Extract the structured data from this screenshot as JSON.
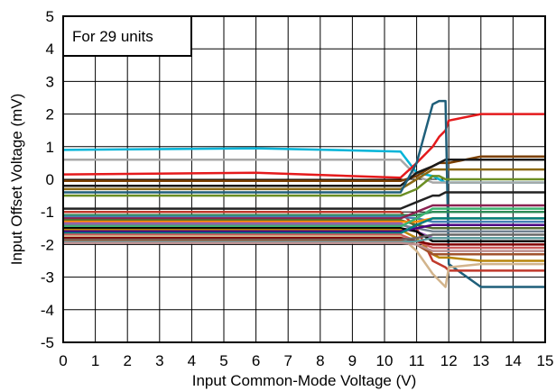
{
  "chart_data": {
    "type": "line",
    "annotation": "For 29 units",
    "xlabel": "Input Common-Mode Voltage (V)",
    "ylabel": "Input Offset Voltage (mV)",
    "xlim": [
      0,
      15
    ],
    "ylim": [
      -5,
      5
    ],
    "xticks": [
      "0",
      "1",
      "2",
      "3",
      "4",
      "5",
      "6",
      "7",
      "8",
      "9",
      "10",
      "11",
      "12",
      "13",
      "14",
      "15"
    ],
    "yticks": [
      "5",
      "4",
      "3",
      "2",
      "1",
      "0",
      "-1",
      "-2",
      "-3",
      "-4",
      "-5"
    ],
    "grid": true,
    "x": [
      0,
      6,
      10.5,
      11,
      11.5,
      11.7,
      11.9,
      12,
      13,
      15
    ],
    "series": [
      {
        "color": "#00b4d8",
        "values": [
          0.9,
          0.95,
          0.85,
          0.2,
          0.1,
          0.0,
          -0.1,
          -0.1,
          -0.1,
          -0.1
        ]
      },
      {
        "color": "#a8a8a8",
        "values": [
          0.6,
          0.6,
          0.6,
          0.1,
          -0.1,
          -0.1,
          -0.1,
          -0.1,
          -0.1,
          -0.1
        ]
      },
      {
        "color": "#e41a1c",
        "values": [
          0.15,
          0.2,
          0.05,
          0.5,
          1.0,
          1.3,
          1.5,
          1.8,
          2.0,
          2.0
        ]
      },
      {
        "color": "#7b3f00",
        "values": [
          -0.05,
          -0.05,
          -0.05,
          0.1,
          0.4,
          0.5,
          0.5,
          0.5,
          0.7,
          0.7
        ]
      },
      {
        "color": "#1a1a1a",
        "values": [
          -0.2,
          -0.2,
          -0.2,
          0.2,
          0.4,
          0.5,
          0.6,
          0.6,
          0.6,
          0.6
        ]
      },
      {
        "color": "#8b6914",
        "values": [
          -0.3,
          -0.3,
          -0.3,
          0.0,
          0.3,
          0.3,
          0.3,
          0.3,
          0.3,
          0.3
        ]
      },
      {
        "color": "#1f5f7a",
        "values": [
          -0.4,
          -0.4,
          -0.4,
          0.5,
          2.3,
          2.4,
          2.4,
          -2.6,
          -3.3,
          -3.3
        ]
      },
      {
        "color": "#6b8e23",
        "values": [
          -0.5,
          -0.5,
          -0.5,
          -0.3,
          0.1,
          0.1,
          0.0,
          0.0,
          0.0,
          0.0
        ]
      },
      {
        "color": "#222222",
        "values": [
          -0.9,
          -0.9,
          -0.9,
          -0.7,
          -0.5,
          -0.5,
          -0.4,
          -0.4,
          -0.4,
          -0.4
        ]
      },
      {
        "color": "#c0392b",
        "values": [
          -1.0,
          -1.0,
          -1.0,
          -1.5,
          -2.5,
          -2.6,
          -2.7,
          -2.8,
          -2.8,
          -2.8
        ]
      },
      {
        "color": "#2e8b57",
        "values": [
          -1.1,
          -1.1,
          -1.1,
          -1.1,
          -1.0,
          -1.0,
          -1.0,
          -1.0,
          -1.0,
          -1.0
        ]
      },
      {
        "color": "#4682b4",
        "values": [
          -1.15,
          -1.15,
          -1.15,
          -1.2,
          -1.3,
          -1.3,
          -1.3,
          -1.3,
          -1.3,
          -1.3
        ]
      },
      {
        "color": "#8b2252",
        "values": [
          -1.2,
          -1.2,
          -1.2,
          -1.0,
          -0.8,
          -0.8,
          -0.8,
          -0.8,
          -0.8,
          -0.8
        ]
      },
      {
        "color": "#556b2f",
        "values": [
          -1.25,
          -1.25,
          -1.25,
          -1.4,
          -1.5,
          -1.5,
          -1.5,
          -1.5,
          -1.5,
          -1.5
        ]
      },
      {
        "color": "#ff8c00",
        "values": [
          -1.3,
          -1.3,
          -1.3,
          -1.3,
          -1.2,
          -1.2,
          -1.2,
          -1.2,
          -1.2,
          -1.2
        ]
      },
      {
        "color": "#9b59b6",
        "values": [
          -1.35,
          -1.35,
          -1.35,
          -1.6,
          -1.8,
          -1.8,
          -1.8,
          -1.8,
          -1.8,
          -1.8
        ]
      },
      {
        "color": "#708090",
        "values": [
          -1.4,
          -1.4,
          -1.4,
          -1.5,
          -1.6,
          -1.6,
          -1.6,
          -1.6,
          -1.6,
          -1.6
        ]
      },
      {
        "color": "#3cb371",
        "values": [
          -1.45,
          -1.45,
          -1.45,
          -1.2,
          -0.9,
          -0.9,
          -0.9,
          -0.9,
          -0.9,
          -0.9
        ]
      },
      {
        "color": "#000000",
        "values": [
          -1.5,
          -1.5,
          -1.5,
          -1.6,
          -1.9,
          -1.9,
          -1.9,
          -1.9,
          -1.9,
          -1.9
        ]
      },
      {
        "color": "#b8860b",
        "values": [
          -1.55,
          -1.55,
          -1.55,
          -1.8,
          -2.3,
          -2.4,
          -2.4,
          -2.4,
          -2.5,
          -2.5
        ]
      },
      {
        "color": "#4b0082",
        "values": [
          -1.6,
          -1.6,
          -1.6,
          -1.5,
          -1.4,
          -1.4,
          -1.4,
          -1.4,
          -1.4,
          -1.4
        ]
      },
      {
        "color": "#008080",
        "values": [
          -1.65,
          -1.65,
          -1.65,
          -1.4,
          -1.2,
          -1.2,
          -1.2,
          -1.2,
          -1.2,
          -1.2
        ]
      },
      {
        "color": "#cd5c5c",
        "values": [
          -1.7,
          -1.7,
          -1.7,
          -1.9,
          -2.1,
          -2.1,
          -2.1,
          -2.1,
          -2.1,
          -2.1
        ]
      },
      {
        "color": "#d2b48c",
        "values": [
          -1.75,
          -1.75,
          -1.75,
          -2.2,
          -2.9,
          -3.1,
          -3.3,
          -2.7,
          -2.6,
          -2.6
        ]
      },
      {
        "color": "#800000",
        "values": [
          -1.8,
          -1.8,
          -1.8,
          -1.9,
          -2.0,
          -2.0,
          -2.0,
          -2.0,
          -2.0,
          -2.0
        ]
      },
      {
        "color": "#696969",
        "values": [
          -1.85,
          -1.85,
          -1.85,
          -1.8,
          -1.7,
          -1.7,
          -1.7,
          -1.7,
          -1.7,
          -1.7
        ]
      },
      {
        "color": "#a0522d",
        "values": [
          -1.88,
          -1.88,
          -1.88,
          -2.0,
          -2.3,
          -2.3,
          -2.3,
          -2.3,
          -2.3,
          -2.3
        ]
      },
      {
        "color": "#5f9ea0",
        "values": [
          -1.92,
          -1.92,
          -1.92,
          -1.9,
          -1.8,
          -1.8,
          -1.8,
          -1.8,
          -1.8,
          -1.8
        ]
      },
      {
        "color": "#bc8f8f",
        "values": [
          -1.95,
          -1.95,
          -1.95,
          -2.0,
          -2.2,
          -2.2,
          -2.2,
          -2.2,
          -2.2,
          -2.2
        ]
      }
    ]
  }
}
